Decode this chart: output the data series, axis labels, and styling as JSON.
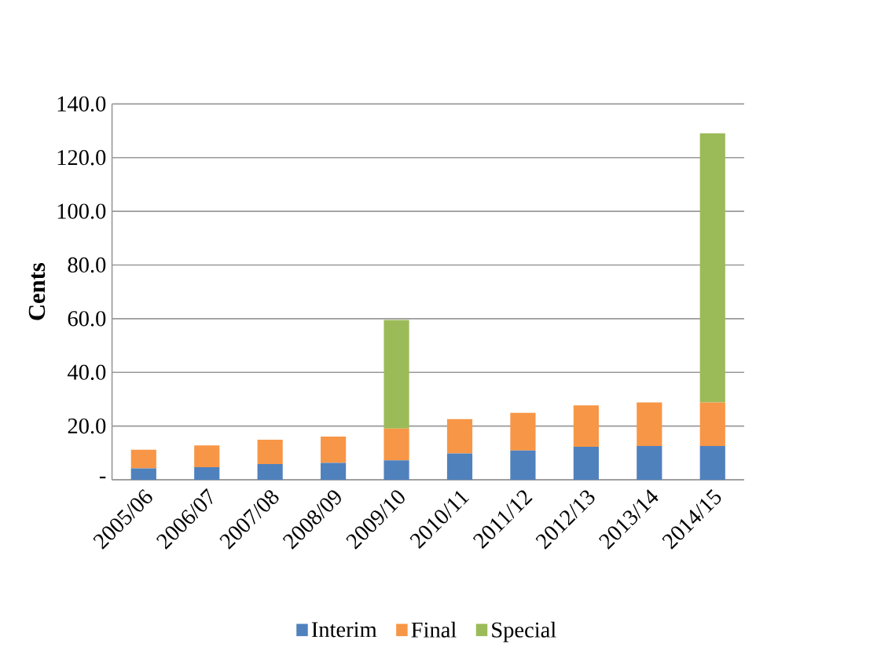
{
  "chart_data": {
    "type": "bar",
    "stacked": true,
    "ylabel": "Cents",
    "categories": [
      "2005/06",
      "2006/07",
      "2007/08",
      "2008/09",
      "2009/10",
      "2010/11",
      "2011/12",
      "2012/13",
      "2013/14",
      "2014/15"
    ],
    "series": [
      {
        "name": "Interim",
        "color": "#4f81bd",
        "values": [
          4.2,
          4.7,
          5.8,
          6.3,
          7.2,
          9.8,
          10.9,
          12.3,
          12.6,
          12.6
        ]
      },
      {
        "name": "Final",
        "color": "#f79646",
        "values": [
          7.0,
          8.1,
          9.1,
          9.8,
          11.9,
          12.8,
          14.0,
          15.4,
          16.2,
          16.2
        ]
      },
      {
        "name": "Special",
        "color": "#9bbb59",
        "values": [
          0,
          0,
          0,
          0,
          40.4,
          0,
          0,
          0,
          0,
          100.3
        ]
      }
    ],
    "ylim": [
      0,
      140
    ],
    "yticks": [
      {
        "value": 0,
        "label": "-"
      },
      {
        "value": 20,
        "label": "20.0"
      },
      {
        "value": 40,
        "label": "40.0"
      },
      {
        "value": 60,
        "label": "60.0"
      },
      {
        "value": 80,
        "label": "80.0"
      },
      {
        "value": 100,
        "label": "100.0"
      },
      {
        "value": 120,
        "label": "120.0"
      },
      {
        "value": 140,
        "label": "140.0"
      }
    ],
    "grid": "y",
    "legend": "bottom"
  }
}
